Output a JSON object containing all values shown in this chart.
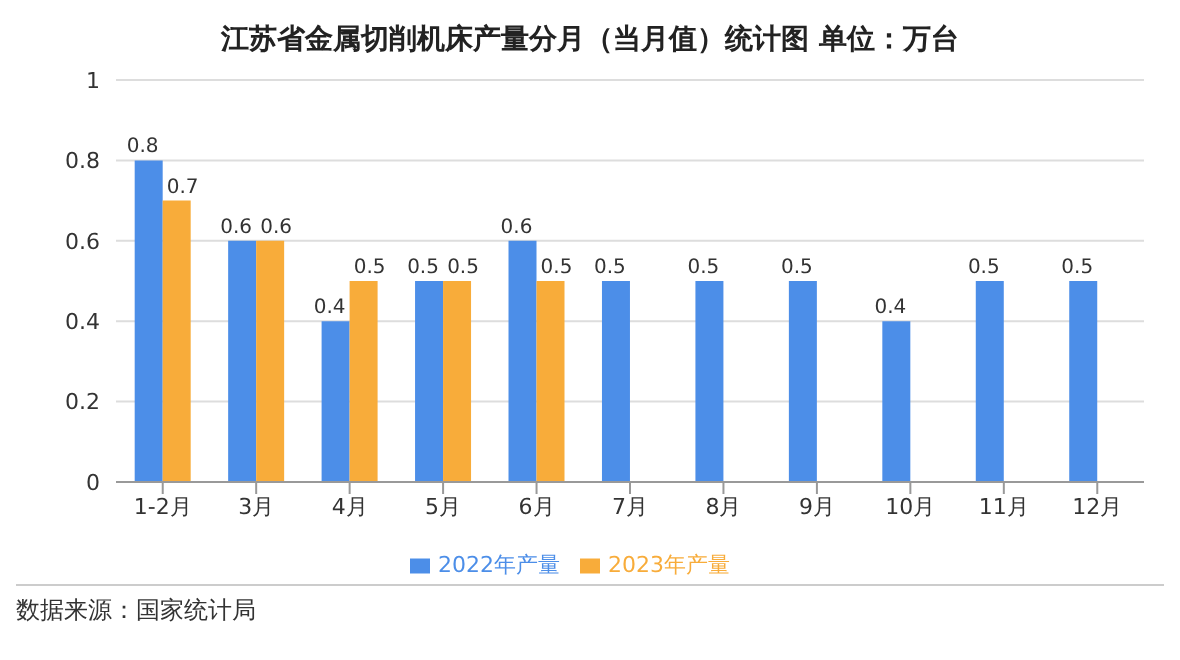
{
  "chart_data": {
    "type": "bar",
    "title": "江苏省金属切削机床产量分月（当月值）统计图 单位：万台",
    "categories": [
      "1-2月",
      "3月",
      "4月",
      "5月",
      "6月",
      "7月",
      "8月",
      "9月",
      "10月",
      "11月",
      "12月"
    ],
    "series": [
      {
        "name": "2022年产量",
        "color": "#4c8ee8",
        "values": [
          0.8,
          0.6,
          0.4,
          0.5,
          0.6,
          0.5,
          0.5,
          0.5,
          0.4,
          0.5,
          0.5
        ]
      },
      {
        "name": "2023年产量",
        "color": "#f8ac3a",
        "values": [
          0.7,
          0.6,
          0.5,
          0.5,
          0.5,
          null,
          null,
          null,
          null,
          null,
          null
        ]
      }
    ],
    "ylim": [
      0,
      1
    ],
    "yticks": [
      0,
      0.2,
      0.4,
      0.6,
      0.8,
      1
    ],
    "grid": "y",
    "legend": "bottom",
    "data_labels": true,
    "annotations": [
      "数据来源：国家统计局"
    ]
  }
}
